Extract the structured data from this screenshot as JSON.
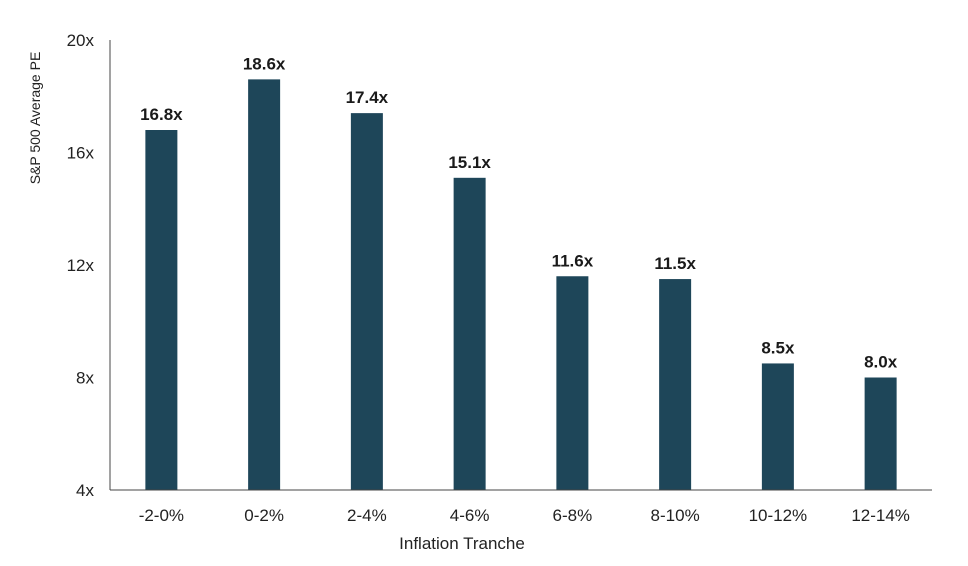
{
  "chart_data": {
    "type": "bar",
    "title": "",
    "xlabel": "Inflation Tranche",
    "ylabel": "S&P 500 Average PE",
    "categories": [
      "-2-0%",
      "0-2%",
      "2-4%",
      "4-6%",
      "6-8%",
      "8-10%",
      "10-12%",
      "12-14%"
    ],
    "values": [
      16.8,
      18.6,
      17.4,
      15.1,
      11.6,
      11.5,
      8.5,
      8.0
    ],
    "data_labels": [
      "16.8x",
      "18.6x",
      "17.4x",
      "15.1x",
      "11.6x",
      "11.5x",
      "8.5x",
      "8.0x"
    ],
    "ylim": [
      4,
      20
    ],
    "yticks": [
      4,
      8,
      12,
      16,
      20
    ],
    "ytick_labels": [
      "4x",
      "8x",
      "12x",
      "16x",
      "20x"
    ],
    "grid": false,
    "legend": "none",
    "bar_color": "#1e4659",
    "axis_color": "#444444"
  }
}
